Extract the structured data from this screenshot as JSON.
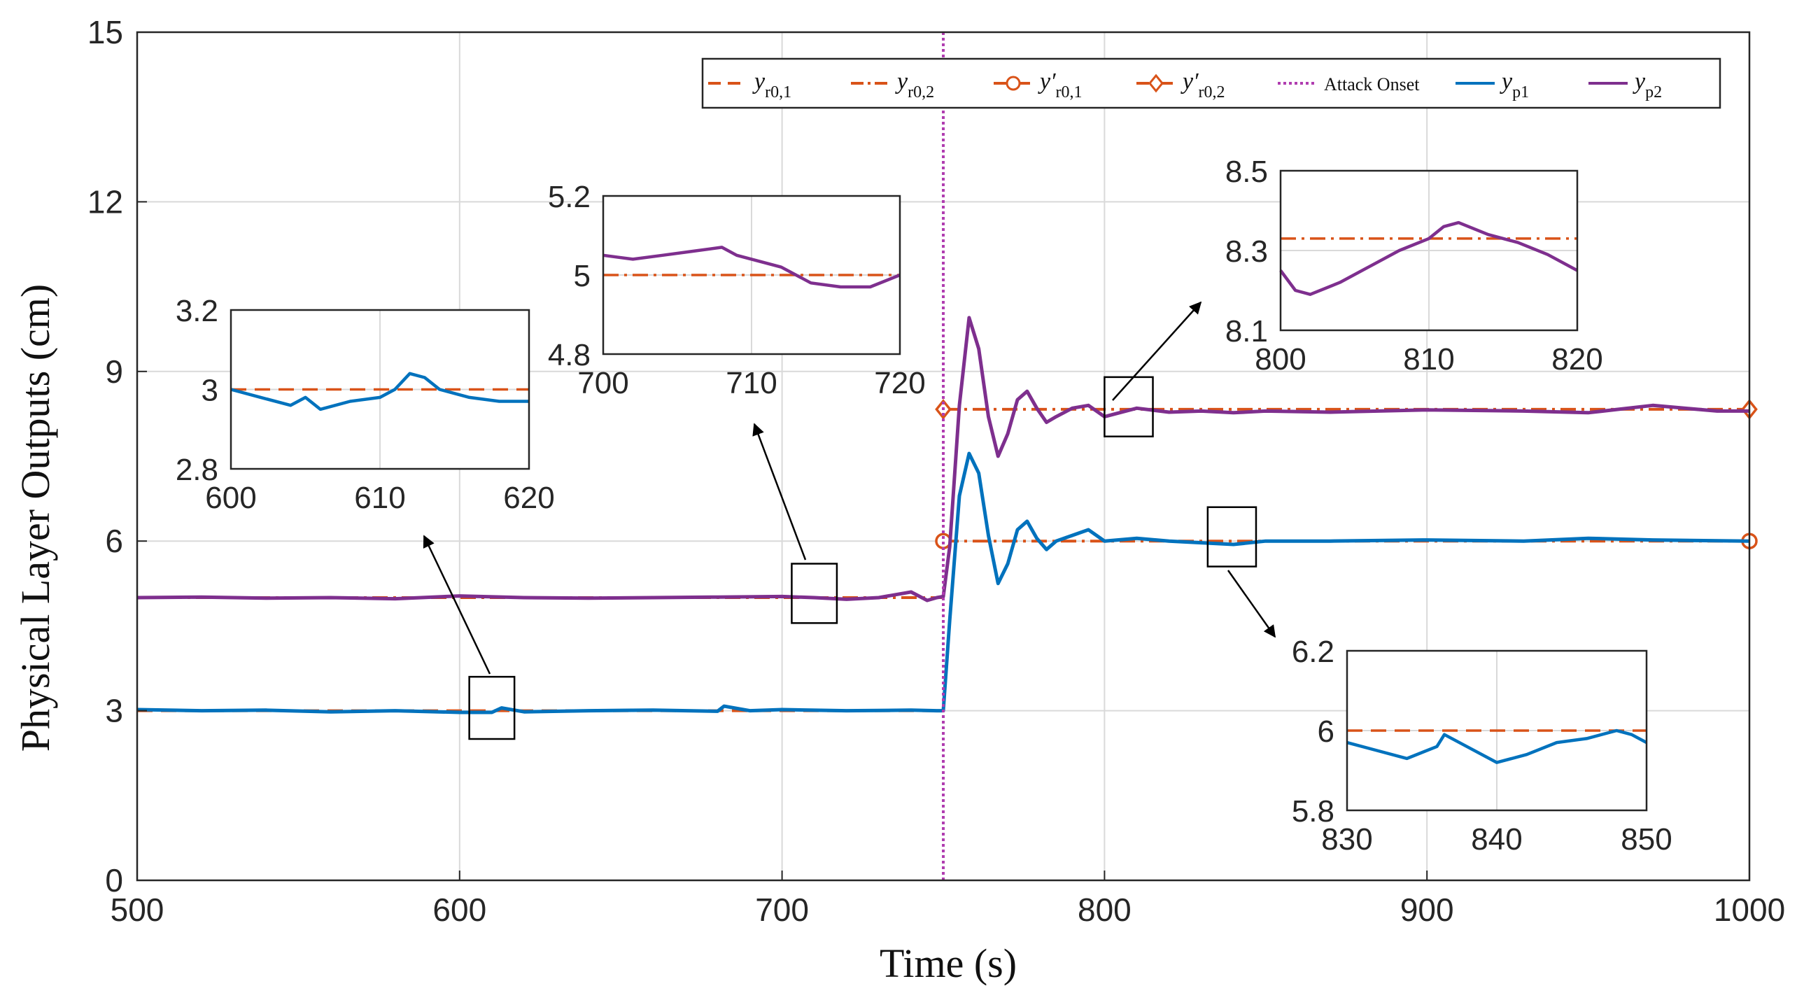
{
  "chart_data": {
    "type": "line",
    "xlabel": "Time (s)",
    "ylabel": "Physical Layer Outputs (cm)",
    "xlim": [
      500,
      1000
    ],
    "ylim": [
      0,
      15
    ],
    "xticks": [
      "500",
      "600",
      "700",
      "800",
      "900",
      "1000"
    ],
    "yticks": [
      "0",
      "3",
      "6",
      "9",
      "12",
      "15"
    ],
    "grid": true,
    "legend_position": "top-right",
    "legend": [
      {
        "name": "y",
        "sub": "r0,1",
        "style": "dashed",
        "color": "#D95319"
      },
      {
        "name": "y",
        "sub": "r0,2",
        "style": "dashdot",
        "color": "#D95319"
      },
      {
        "name": "y′",
        "sub": "r0,1",
        "style": "dashdot-circle",
        "color": "#D95319"
      },
      {
        "name": "y′",
        "sub": "r0,2",
        "style": "dashdot-diamond",
        "color": "#D95319"
      },
      {
        "name": "Attack Onset",
        "sub": "",
        "style": "dotted",
        "color": "#B03DB0"
      },
      {
        "name": "y",
        "sub": "p1",
        "style": "solid",
        "color": "#0072BD"
      },
      {
        "name": "y",
        "sub": "p2",
        "style": "solid",
        "color": "#7E2F8E"
      }
    ],
    "attack_onset": 750,
    "references": {
      "yr01": {
        "x": [
          500,
          750
        ],
        "y": 3
      },
      "yr02": {
        "x": [
          500,
          750
        ],
        "y": 5
      },
      "yr01_prime": {
        "x": [
          750,
          1000
        ],
        "y": 6
      },
      "yr02_prime": {
        "x": [
          750,
          1000
        ],
        "y": 8.33
      }
    },
    "series": [
      {
        "name": "yp1",
        "color": "#0072BD",
        "x": [
          500,
          520,
          540,
          560,
          580,
          600,
          610,
          613,
          620,
          640,
          660,
          680,
          682,
          690,
          700,
          720,
          740,
          748,
          750,
          752,
          755,
          758,
          761,
          764,
          767,
          770,
          773,
          776,
          779,
          782,
          785,
          790,
          795,
          800,
          810,
          820,
          830,
          840,
          850,
          870,
          900,
          930,
          950,
          970,
          1000
        ],
        "y": [
          3.02,
          3.0,
          3.01,
          2.98,
          3.0,
          2.97,
          2.97,
          3.05,
          2.98,
          3.0,
          3.01,
          2.99,
          3.08,
          3.0,
          3.02,
          3.0,
          3.01,
          3.0,
          3.0,
          4.6,
          6.8,
          7.55,
          7.2,
          6.1,
          5.25,
          5.6,
          6.2,
          6.35,
          6.05,
          5.85,
          6.0,
          6.1,
          6.2,
          6.0,
          6.05,
          6.0,
          5.97,
          5.94,
          6.0,
          6.0,
          6.02,
          6.0,
          6.05,
          6.02,
          6.0
        ]
      },
      {
        "name": "yp2",
        "color": "#7E2F8E",
        "x": [
          500,
          520,
          540,
          560,
          580,
          600,
          620,
          640,
          660,
          680,
          700,
          710,
          720,
          730,
          740,
          745,
          748,
          750,
          752,
          755,
          758,
          761,
          764,
          767,
          770,
          773,
          776,
          779,
          782,
          785,
          790,
          795,
          800,
          810,
          820,
          830,
          840,
          850,
          870,
          900,
          930,
          950,
          970,
          990,
          1000
        ],
        "y": [
          5.0,
          5.01,
          4.99,
          5.0,
          4.98,
          5.03,
          5.0,
          4.99,
          5.0,
          5.01,
          5.02,
          5.0,
          4.97,
          5.0,
          5.1,
          4.95,
          5.0,
          5.02,
          5.9,
          8.4,
          9.95,
          9.4,
          8.2,
          7.5,
          7.9,
          8.5,
          8.65,
          8.35,
          8.1,
          8.2,
          8.35,
          8.4,
          8.2,
          8.35,
          8.28,
          8.3,
          8.27,
          8.3,
          8.28,
          8.32,
          8.3,
          8.27,
          8.4,
          8.3,
          8.3
        ]
      }
    ],
    "insets": [
      {
        "id": "inset-1",
        "xlim": [
          600,
          620
        ],
        "ylim": [
          2.8,
          3.2
        ],
        "xticks": [
          "600",
          "610",
          "620"
        ],
        "yticks": [
          "2.8",
          "3",
          "3.2"
        ],
        "reference": {
          "y": 3,
          "style": "dashed"
        },
        "series": {
          "color": "#0072BD",
          "x": [
            600,
            602,
            604,
            605,
            606,
            608,
            610,
            611,
            612,
            613,
            614,
            616,
            618,
            620
          ],
          "y": [
            3.0,
            2.98,
            2.96,
            2.98,
            2.95,
            2.97,
            2.98,
            3.0,
            3.04,
            3.03,
            3.0,
            2.98,
            2.97,
            2.97
          ]
        }
      },
      {
        "id": "inset-2",
        "xlim": [
          700,
          720
        ],
        "ylim": [
          4.8,
          5.2
        ],
        "xticks": [
          "700",
          "710",
          "720"
        ],
        "yticks": [
          "4.8",
          "5",
          "5.2"
        ],
        "reference": {
          "y": 5,
          "style": "dashdot"
        },
        "series": {
          "color": "#7E2F8E",
          "x": [
            700,
            702,
            704,
            706,
            708,
            709,
            710,
            712,
            714,
            716,
            718,
            720
          ],
          "y": [
            5.05,
            5.04,
            5.05,
            5.06,
            5.07,
            5.05,
            5.04,
            5.02,
            4.98,
            4.97,
            4.97,
            5.0
          ]
        }
      },
      {
        "id": "inset-3",
        "xlim": [
          800,
          820
        ],
        "ylim": [
          8.1,
          8.5
        ],
        "xticks": [
          "800",
          "810",
          "820"
        ],
        "yticks": [
          "8.1",
          "8.3",
          "8.5"
        ],
        "reference": {
          "y": 8.33,
          "style": "dashdot"
        },
        "series": {
          "color": "#7E2F8E",
          "x": [
            800,
            801,
            802,
            804,
            806,
            808,
            810,
            811,
            812,
            814,
            816,
            818,
            820
          ],
          "y": [
            8.25,
            8.2,
            8.19,
            8.22,
            8.26,
            8.3,
            8.33,
            8.36,
            8.37,
            8.34,
            8.32,
            8.29,
            8.25
          ]
        }
      },
      {
        "id": "inset-4",
        "xlim": [
          830,
          850
        ],
        "ylim": [
          5.8,
          6.2
        ],
        "xticks": [
          "830",
          "840",
          "850"
        ],
        "yticks": [
          "5.8",
          "6",
          "6.2"
        ],
        "reference": {
          "y": 6,
          "style": "dashed"
        },
        "series": {
          "color": "#0072BD",
          "x": [
            830,
            832,
            834,
            836,
            836.5,
            838,
            840,
            842,
            844,
            846,
            848,
            849,
            850
          ],
          "y": [
            5.97,
            5.95,
            5.93,
            5.96,
            5.99,
            5.96,
            5.92,
            5.94,
            5.97,
            5.98,
            6.0,
            5.99,
            5.97
          ]
        }
      }
    ],
    "zoom_boxes": [
      {
        "x": [
          603,
          617
        ],
        "y": [
          2.5,
          3.6
        ],
        "inset": "inset-1"
      },
      {
        "x": [
          703,
          717
        ],
        "y": [
          4.55,
          5.6
        ],
        "inset": "inset-2"
      },
      {
        "x": [
          800,
          815
        ],
        "y": [
          7.85,
          8.9
        ],
        "inset": "inset-3"
      },
      {
        "x": [
          832,
          847
        ],
        "y": [
          5.55,
          6.6
        ],
        "inset": "inset-4"
      }
    ]
  }
}
